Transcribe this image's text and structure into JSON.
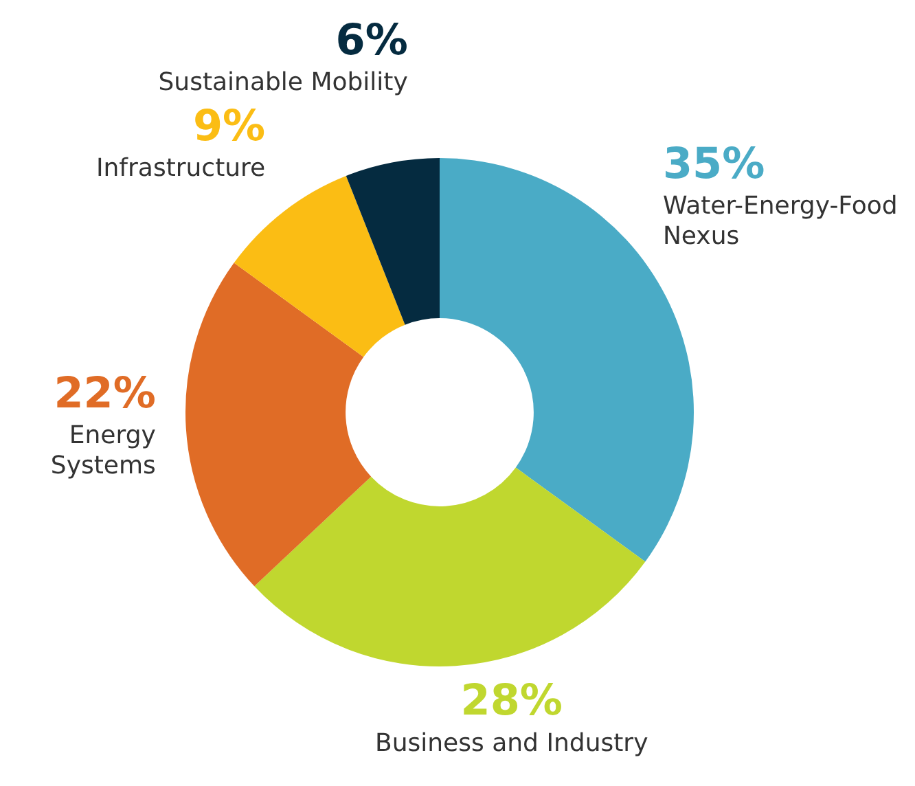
{
  "chart_data": {
    "type": "donut",
    "categories": [
      "Water-Energy-Food Nexus",
      "Business and Industry",
      "Energy Systems",
      "Infrastructure",
      "Sustainable Mobility"
    ],
    "values": [
      35,
      28,
      22,
      9,
      6
    ],
    "colors": [
      "#4aabc6",
      "#c0d72f",
      "#e06c26",
      "#fbbd14",
      "#052b40"
    ],
    "value_labels": [
      "35%",
      "28%",
      "22%",
      "9%",
      "6%"
    ],
    "legend": false
  }
}
